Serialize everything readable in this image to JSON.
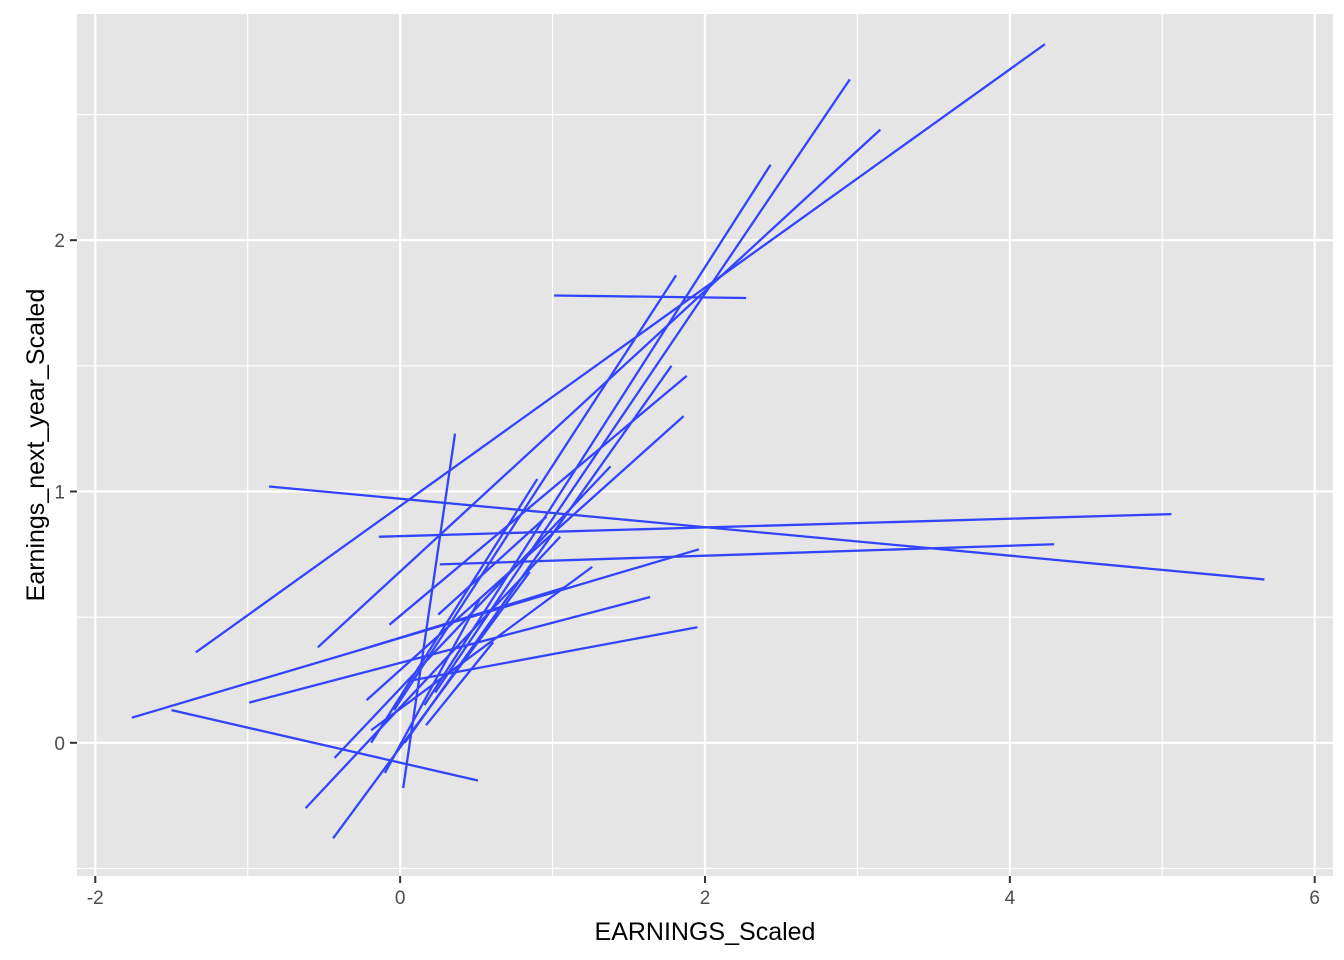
{
  "chart_data": {
    "type": "line",
    "title": "",
    "xlabel": "EARNINGS_Scaled",
    "ylabel": "Earnings_next_year_Scaled",
    "xlim": [
      -2.12,
      6.12
    ],
    "ylim": [
      -0.53,
      2.9
    ],
    "x_ticks": [
      -2,
      0,
      2,
      4,
      6
    ],
    "x_tick_labels": [
      "-2",
      "0",
      "2",
      "4",
      "6"
    ],
    "y_ticks": [
      0,
      1,
      2
    ],
    "y_tick_labels": [
      "0",
      "1",
      "2"
    ],
    "grid": true,
    "legend": "none",
    "colors": {
      "panel": "#E5E5E5",
      "grid": "#FFFFFF",
      "line": "#3344FF",
      "tick_text": "#4D4D4D",
      "axis_title": "#000000"
    },
    "segments": [
      {
        "x": [
          4.23,
          -1.34
        ],
        "y": [
          2.78,
          0.36
        ]
      },
      {
        "x": [
          2.95,
          0.23
        ],
        "y": [
          2.64,
          0.2
        ]
      },
      {
        "x": [
          3.15,
          -0.54
        ],
        "y": [
          2.44,
          0.38
        ]
      },
      {
        "x": [
          2.43,
          0.16
        ],
        "y": [
          2.3,
          0.15
        ]
      },
      {
        "x": [
          1.81,
          -0.04
        ],
        "y": [
          1.86,
          0.13
        ]
      },
      {
        "x": [
          2.27,
          1.01
        ],
        "y": [
          1.77,
          1.78
        ]
      },
      {
        "x": [
          1.78,
          0.03
        ],
        "y": [
          1.5,
          0.0
        ]
      },
      {
        "x": [
          1.88,
          -0.07
        ],
        "y": [
          1.46,
          0.47
        ]
      },
      {
        "x": [
          1.86,
          -0.22
        ],
        "y": [
          1.3,
          0.17
        ]
      },
      {
        "x": [
          1.38,
          -0.43
        ],
        "y": [
          1.1,
          -0.06
        ]
      },
      {
        "x": [
          0.36,
          0.02
        ],
        "y": [
          1.23,
          -0.18
        ]
      },
      {
        "x": [
          -0.86,
          5.67
        ],
        "y": [
          1.02,
          0.65
        ]
      },
      {
        "x": [
          -0.14,
          5.06
        ],
        "y": [
          0.82,
          0.91
        ]
      },
      {
        "x": [
          0.26,
          4.29
        ],
        "y": [
          0.71,
          0.79
        ]
      },
      {
        "x": [
          1.96,
          -1.76
        ],
        "y": [
          0.77,
          0.1
        ]
      },
      {
        "x": [
          1.05,
          -0.62
        ],
        "y": [
          0.82,
          -0.26
        ]
      },
      {
        "x": [
          1.26,
          -0.19
        ],
        "y": [
          0.7,
          0.05
        ]
      },
      {
        "x": [
          1.64,
          -0.99
        ],
        "y": [
          0.58,
          0.16
        ]
      },
      {
        "x": [
          1.95,
          0.09
        ],
        "y": [
          0.46,
          0.25
        ]
      },
      {
        "x": [
          1.09,
          -0.26
        ],
        "y": [
          0.62,
          0.37
        ]
      },
      {
        "x": [
          0.85,
          -0.44
        ],
        "y": [
          0.68,
          -0.38
        ]
      },
      {
        "x": [
          -1.5,
          0.51
        ],
        "y": [
          0.13,
          -0.15
        ]
      },
      {
        "x": [
          0.9,
          -0.19
        ],
        "y": [
          1.05,
          0.0
        ]
      },
      {
        "x": [
          0.61,
          0.17
        ],
        "y": [
          0.4,
          0.07
        ]
      },
      {
        "x": [
          0.52,
          -0.1
        ],
        "y": [
          0.57,
          -0.12
        ]
      },
      {
        "x": [
          0.96,
          0.25
        ],
        "y": [
          0.9,
          0.51
        ]
      }
    ]
  }
}
